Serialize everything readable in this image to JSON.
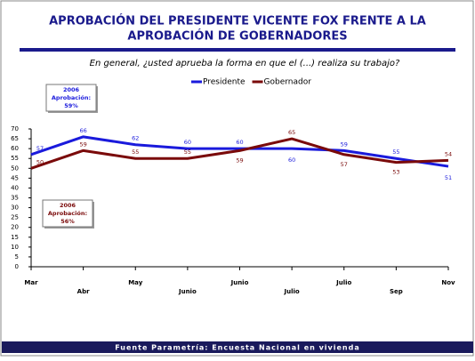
{
  "chart_data": {
    "type": "line",
    "title": [
      "APROBACIÓN DEL PRESIDENTE VICENTE FOX FRENTE A LA",
      "APROBACIÓN DE GOBERNADORES"
    ],
    "subtitle": "En general, ¿usted aprueba la forma en que el (...) realiza su trabajo?",
    "categories": [
      "Mar",
      "Abr",
      "May",
      "Junio",
      "Junio",
      "Julio",
      "Julio",
      "Sep",
      "Nov"
    ],
    "series": [
      {
        "name": "Presidente",
        "color": "#1a1adc",
        "values": [
          57,
          66,
          62,
          60,
          60,
          60,
          59,
          55,
          51
        ]
      },
      {
        "name": "Gobernador",
        "color": "#7a0a0a",
        "values": [
          50,
          59,
          55,
          55,
          59,
          65,
          57,
          53,
          54
        ]
      }
    ],
    "ylim": [
      0,
      70
    ],
    "yticks": [
      0,
      5,
      10,
      15,
      20,
      25,
      30,
      35,
      40,
      45,
      50,
      55,
      60,
      65,
      70
    ],
    "grid": false,
    "legend": "top",
    "annotations": [
      {
        "lines": [
          "2006",
          "Aprobación:",
          "59%"
        ],
        "color": "#1a1adc"
      },
      {
        "lines": [
          "2006",
          "Aprobación:",
          "56%"
        ],
        "color": "#7a0a0a"
      }
    ],
    "source": "Fuente Parametría: Encuesta Nacional en vivienda"
  }
}
